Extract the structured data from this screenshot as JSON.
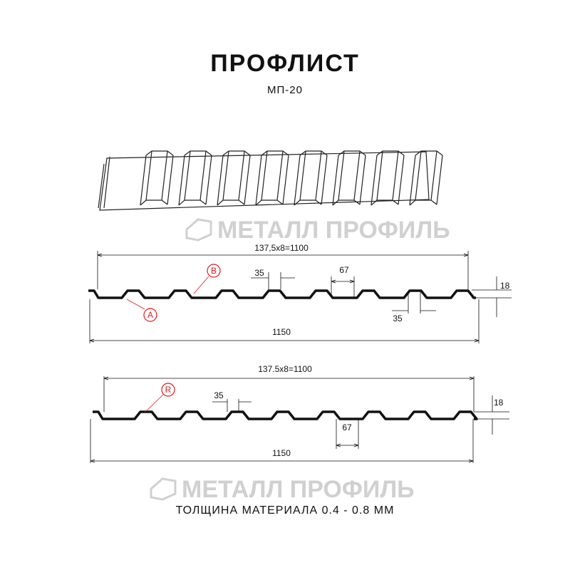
{
  "title": "ПРОФЛИСТ",
  "subtitle": "МП-20",
  "footer": "ТОЛЩИНА МАТЕРИАЛА 0.4 - 0.8 ММ",
  "watermark": "МЕТАЛЛ ПРОФИЛЬ",
  "colors": {
    "line": "#111111",
    "callout": "#e01818",
    "watermark": "#d0d0d0"
  },
  "profile_a": {
    "pitch_label": "137,5x8=1100",
    "width_label": "1150",
    "top_label": "35",
    "bottom_top_label": "35",
    "base_label": "67",
    "height_label": "18",
    "callouts": [
      "A",
      "B"
    ]
  },
  "profile_b": {
    "pitch_label": "137.5x8=1100",
    "width_label": "1150",
    "top_label": "35",
    "base_label": "67",
    "height_label": "18",
    "callouts": [
      "R"
    ]
  }
}
